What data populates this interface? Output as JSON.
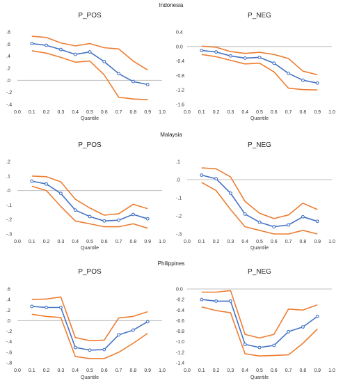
{
  "groups": [
    {
      "title": "Indonesia"
    },
    {
      "title": "Malaysia"
    },
    {
      "title": "Philippines"
    }
  ],
  "colors": {
    "estimate": "#4472C4",
    "band": "#ED7D31",
    "zero_line": "#BFBFBF"
  },
  "chart_data": [
    {
      "type": "line",
      "group": "Indonesia",
      "title": "P_POS",
      "xlabel": "Quantile",
      "ylabel": "",
      "xlim": [
        0.0,
        1.0
      ],
      "ylim": [
        -0.4,
        0.8
      ],
      "x_ticks": [
        "0.0",
        "0.1",
        "0.2",
        "0.3",
        "0.4",
        "0.5",
        "0.6",
        "0.7",
        "0.8",
        "0.9",
        "1.0"
      ],
      "y_ticks": [
        ".8",
        ".6",
        ".4",
        ".2",
        ".0",
        "-.2",
        "-.4"
      ],
      "y_tick_values": [
        0.8,
        0.6,
        0.4,
        0.2,
        0.0,
        -0.2,
        -0.4
      ],
      "x": [
        0.1,
        0.2,
        0.3,
        0.4,
        0.5,
        0.6,
        0.7,
        0.8,
        0.9
      ],
      "series": [
        {
          "role": "upper",
          "values": [
            0.73,
            0.71,
            0.62,
            0.57,
            0.61,
            0.54,
            0.52,
            0.32,
            0.17
          ]
        },
        {
          "role": "estimate",
          "values": [
            0.61,
            0.58,
            0.51,
            0.43,
            0.47,
            0.31,
            0.11,
            -0.02,
            -0.07
          ]
        },
        {
          "role": "lower",
          "values": [
            0.49,
            0.45,
            0.38,
            0.3,
            0.32,
            0.09,
            -0.28,
            -0.31,
            -0.32
          ]
        }
      ]
    },
    {
      "type": "line",
      "group": "Indonesia",
      "title": "P_NEG",
      "xlabel": "Quantile",
      "ylabel": "",
      "xlim": [
        0.0,
        1.0
      ],
      "ylim": [
        -1.6,
        0.4
      ],
      "x_ticks": [
        "0.0",
        "0.1",
        "0.2",
        "0.3",
        "0.4",
        "0.5",
        "0.6",
        "0.7",
        "0.8",
        "0.9",
        "1.0"
      ],
      "y_ticks": [
        "0.4",
        "0.0",
        "-0.4",
        "-0.8",
        "-1.2",
        "-1.6"
      ],
      "y_tick_values": [
        0.4,
        0.0,
        -0.4,
        -0.8,
        -1.2,
        -1.6
      ],
      "x": [
        0.1,
        0.2,
        0.3,
        0.4,
        0.5,
        0.6,
        0.7,
        0.8,
        0.9
      ],
      "series": [
        {
          "role": "upper",
          "values": [
            0.01,
            -0.02,
            -0.14,
            -0.19,
            -0.16,
            -0.22,
            -0.33,
            -0.68,
            -0.78
          ]
        },
        {
          "role": "estimate",
          "values": [
            -0.11,
            -0.15,
            -0.26,
            -0.32,
            -0.3,
            -0.46,
            -0.74,
            -0.93,
            -1.01
          ]
        },
        {
          "role": "lower",
          "values": [
            -0.22,
            -0.28,
            -0.38,
            -0.48,
            -0.46,
            -0.7,
            -1.15,
            -1.19,
            -1.2
          ]
        }
      ]
    },
    {
      "type": "line",
      "group": "Malaysia",
      "title": "P_POS",
      "xlabel": "Quantile",
      "ylabel": "",
      "xlim": [
        0.0,
        1.0
      ],
      "ylim": [
        -0.3,
        0.2
      ],
      "x_ticks": [
        "0.0",
        "0.1",
        "0.2",
        "0.3",
        "0.4",
        "0.5",
        "0.6",
        "0.7",
        "0.8",
        "0.9",
        "1.0"
      ],
      "y_ticks": [
        ".2",
        ".1",
        ".0",
        "-.1",
        "-.2",
        "-.3"
      ],
      "y_tick_values": [
        0.2,
        0.1,
        0.0,
        -0.1,
        -0.2,
        -0.3
      ],
      "x": [
        0.1,
        0.2,
        0.3,
        0.4,
        0.5,
        0.6,
        0.7,
        0.8,
        0.9
      ],
      "series": [
        {
          "role": "upper",
          "values": [
            0.1,
            0.095,
            0.06,
            -0.06,
            -0.12,
            -0.17,
            -0.16,
            -0.095,
            -0.125
          ]
        },
        {
          "role": "estimate",
          "values": [
            0.065,
            0.045,
            -0.02,
            -0.135,
            -0.18,
            -0.21,
            -0.205,
            -0.165,
            -0.195
          ]
        },
        {
          "role": "lower",
          "values": [
            0.03,
            0.0,
            -0.11,
            -0.21,
            -0.23,
            -0.25,
            -0.25,
            -0.23,
            -0.26
          ]
        }
      ]
    },
    {
      "type": "line",
      "group": "Malaysia",
      "title": "P_NEG",
      "xlabel": "Quantile",
      "ylabel": "",
      "xlim": [
        0.0,
        1.0
      ],
      "ylim": [
        -0.3,
        0.1
      ],
      "x_ticks": [
        "0.0",
        "0.1",
        "0.2",
        "0.3",
        "0.4",
        "0.5",
        "0.6",
        "0.7",
        "0.8",
        "0.9",
        "1.0"
      ],
      "y_ticks": [
        ".1",
        ".0",
        "-.1",
        "-.2",
        "-.3"
      ],
      "y_tick_values": [
        0.1,
        0.0,
        -0.1,
        -0.2,
        -0.3
      ],
      "x": [
        0.1,
        0.2,
        0.3,
        0.4,
        0.5,
        0.6,
        0.7,
        0.8,
        0.9
      ],
      "series": [
        {
          "role": "upper",
          "values": [
            0.065,
            0.06,
            0.015,
            -0.12,
            -0.185,
            -0.215,
            -0.195,
            -0.13,
            -0.165
          ]
        },
        {
          "role": "estimate",
          "values": [
            0.025,
            0.005,
            -0.075,
            -0.19,
            -0.235,
            -0.26,
            -0.25,
            -0.205,
            -0.23
          ]
        },
        {
          "role": "lower",
          "values": [
            -0.015,
            -0.06,
            -0.165,
            -0.26,
            -0.28,
            -0.3,
            -0.3,
            -0.28,
            -0.3
          ]
        }
      ]
    },
    {
      "type": "line",
      "group": "Philippines",
      "title": "P_POS",
      "xlabel": "Quantile",
      "ylabel": "",
      "xlim": [
        0.0,
        1.0
      ],
      "ylim": [
        -0.8,
        0.6
      ],
      "x_ticks": [
        "0.0",
        "0.1",
        "0.2",
        "0.3",
        "0.4",
        "0.5",
        "0.6",
        "0.7",
        "0.8",
        "0.9",
        "1.0"
      ],
      "y_ticks": [
        ".6",
        ".4",
        ".2",
        ".0",
        "-.2",
        "-.4",
        "-.6",
        "-.8"
      ],
      "y_tick_values": [
        0.6,
        0.4,
        0.2,
        0.0,
        -0.2,
        -0.4,
        -0.6,
        -0.8
      ],
      "x": [
        0.1,
        0.2,
        0.3,
        0.4,
        0.5,
        0.6,
        0.7,
        0.8,
        0.9
      ],
      "series": [
        {
          "role": "upper",
          "values": [
            0.4,
            0.41,
            0.45,
            -0.32,
            -0.38,
            -0.37,
            0.05,
            0.08,
            0.17
          ]
        },
        {
          "role": "estimate",
          "values": [
            0.27,
            0.25,
            0.25,
            -0.51,
            -0.56,
            -0.55,
            -0.27,
            -0.18,
            -0.02
          ]
        },
        {
          "role": "lower",
          "values": [
            0.12,
            0.08,
            0.06,
            -0.68,
            -0.72,
            -0.72,
            -0.6,
            -0.43,
            -0.24
          ]
        }
      ]
    },
    {
      "type": "line",
      "group": "Philippines",
      "title": "P_NEG",
      "xlabel": "Quantile",
      "ylabel": "",
      "xlim": [
        0.0,
        1.0
      ],
      "ylim": [
        -1.4,
        0.0
      ],
      "x_ticks": [
        "0.0",
        "0.1",
        "0.2",
        "0.3",
        "0.4",
        "0.5",
        "0.6",
        "0.7",
        "0.8",
        "0.9",
        "1.0"
      ],
      "y_ticks": [
        "0.0",
        "-0.2",
        "-0.4",
        "-0.6",
        "-0.8",
        "-1.0",
        "-1.2",
        "-1.4"
      ],
      "y_tick_values": [
        0.0,
        -0.2,
        -0.4,
        -0.6,
        -0.8,
        -1.0,
        -1.2,
        -1.4
      ],
      "x": [
        0.1,
        0.2,
        0.3,
        0.4,
        0.5,
        0.6,
        0.7,
        0.8,
        0.9
      ],
      "series": [
        {
          "role": "upper",
          "values": [
            -0.06,
            -0.06,
            -0.03,
            -0.86,
            -0.93,
            -0.86,
            -0.38,
            -0.4,
            -0.3
          ]
        },
        {
          "role": "estimate",
          "values": [
            -0.2,
            -0.23,
            -0.23,
            -1.05,
            -1.11,
            -1.07,
            -0.81,
            -0.72,
            -0.52
          ]
        },
        {
          "role": "lower",
          "values": [
            -0.34,
            -0.41,
            -0.45,
            -1.23,
            -1.27,
            -1.26,
            -1.25,
            -1.03,
            -0.76
          ]
        }
      ]
    }
  ]
}
